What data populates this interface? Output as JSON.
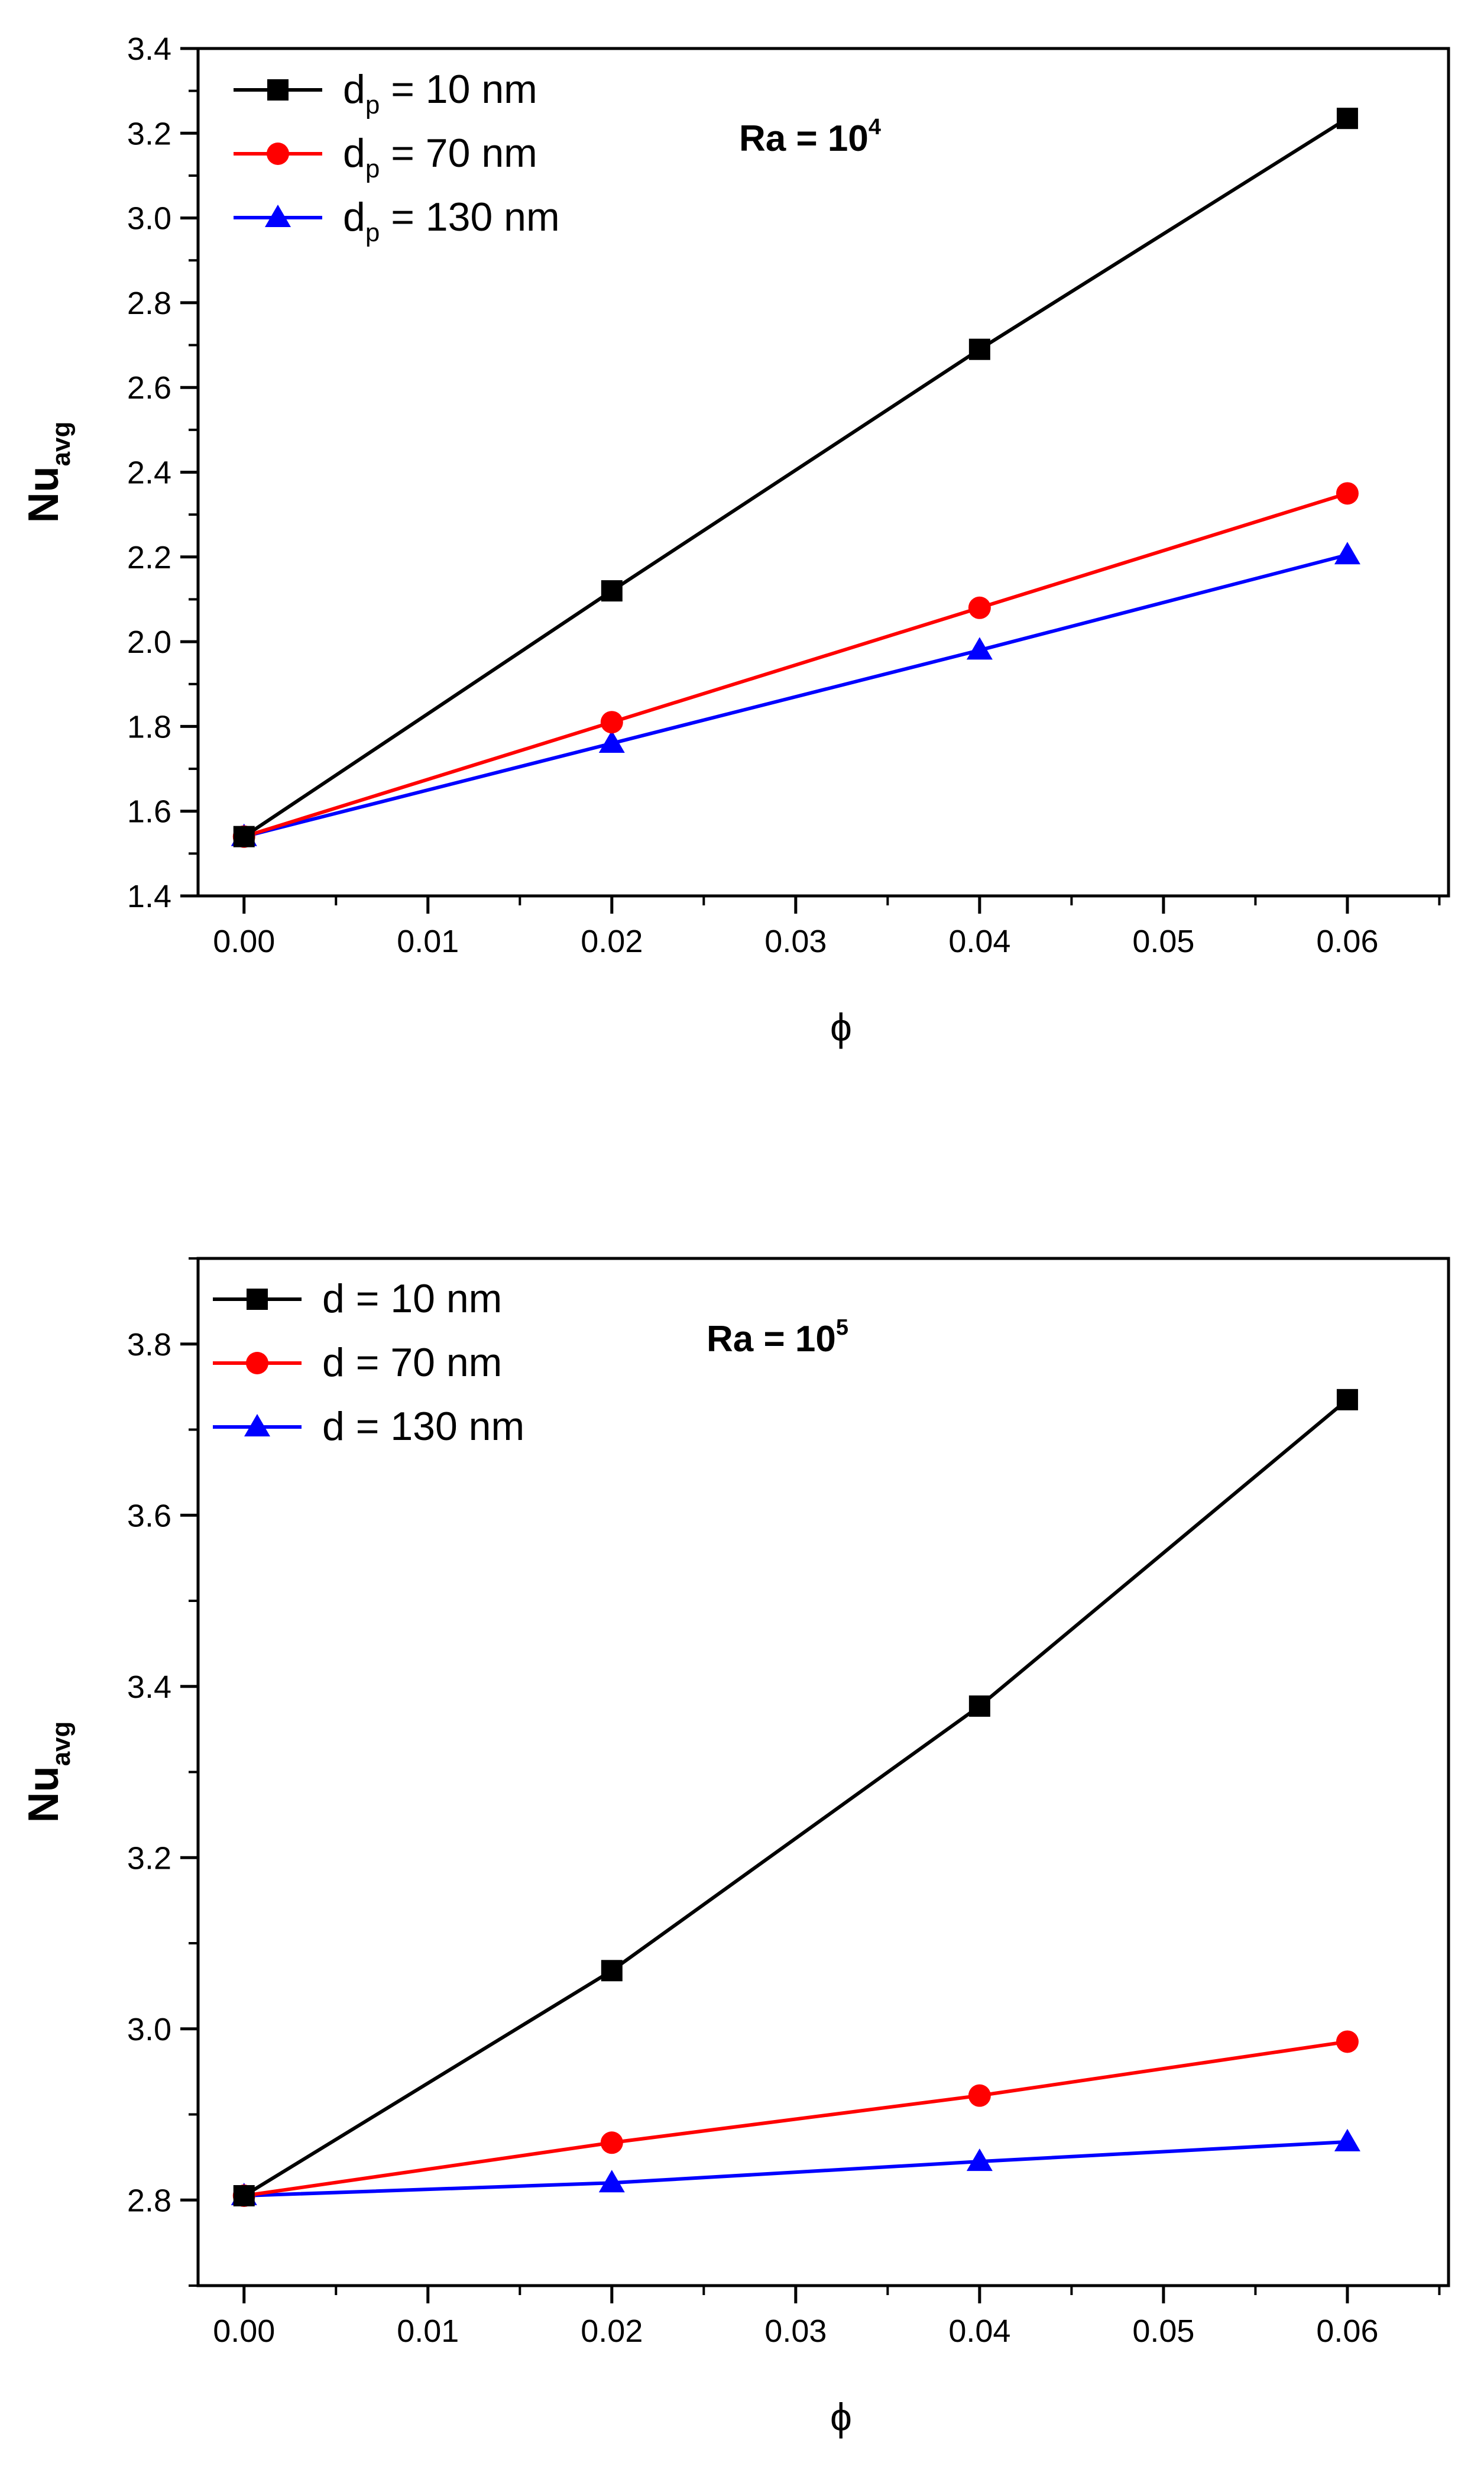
{
  "chart_data": [
    {
      "type": "line",
      "annotation": {
        "text": "Ra = 10",
        "superscript": "4"
      },
      "xlabel": "ϕ",
      "ylabel": {
        "main": "Nu",
        "sub": "avg"
      },
      "xlim": [
        -0.0025,
        0.0655
      ],
      "ylim": [
        1.4,
        3.4
      ],
      "xticks": [
        0.0,
        0.01,
        0.02,
        0.03,
        0.04,
        0.05,
        0.06
      ],
      "xtick_labels": [
        "0.00",
        "0.01",
        "0.02",
        "0.03",
        "0.04",
        "0.05",
        "0.06"
      ],
      "yticks": [
        1.4,
        1.6,
        1.8,
        2.0,
        2.2,
        2.4,
        2.6,
        2.8,
        3.0,
        3.2,
        3.4
      ],
      "ytick_labels": [
        "1.4",
        "1.6",
        "1.8",
        "2.0",
        "2.2",
        "2.4",
        "2.6",
        "2.8",
        "3.0",
        "3.2",
        "3.4"
      ],
      "legend_position": "top-left",
      "x": [
        0.0,
        0.02,
        0.04,
        0.06
      ],
      "series": [
        {
          "legend": {
            "base": "d",
            "sub": "p",
            "rest": " = 10   nm"
          },
          "color": "#000000",
          "marker": "square",
          "values": [
            1.54,
            2.12,
            2.69,
            3.235
          ]
        },
        {
          "legend": {
            "base": "d",
            "sub": "p",
            "rest": " = 70   nm"
          },
          "color": "#ff0000",
          "marker": "circle",
          "values": [
            1.54,
            1.81,
            2.08,
            2.35
          ]
        },
        {
          "legend": {
            "base": "d",
            "sub": "p",
            "rest": " = 130 nm"
          },
          "color": "#0000ff",
          "marker": "triangle",
          "values": [
            1.54,
            1.76,
            1.98,
            2.205
          ]
        }
      ]
    },
    {
      "type": "line",
      "annotation": {
        "text": "Ra = 10",
        "superscript": "5"
      },
      "xlabel": "ϕ",
      "ylabel": {
        "main": "Nu",
        "sub": "avg"
      },
      "xlim": [
        -0.0025,
        0.0655
      ],
      "ylim": [
        2.7,
        3.9
      ],
      "xticks": [
        0.0,
        0.01,
        0.02,
        0.03,
        0.04,
        0.05,
        0.06
      ],
      "xtick_labels": [
        "0.00",
        "0.01",
        "0.02",
        "0.03",
        "0.04",
        "0.05",
        "0.06"
      ],
      "yticks": [
        2.8,
        3.0,
        3.2,
        3.4,
        3.6,
        3.8
      ],
      "ytick_labels": [
        "2.8",
        "3.0",
        "3.2",
        "3.4",
        "3.6",
        "3.8"
      ],
      "legend_position": "top-left",
      "x": [
        0.0,
        0.02,
        0.04,
        0.06
      ],
      "series": [
        {
          "legend": {
            "base": "d",
            "sub": "",
            "rest": " = 10   nm"
          },
          "color": "#000000",
          "marker": "square",
          "values": [
            2.805,
            3.068,
            3.377,
            3.735
          ]
        },
        {
          "legend": {
            "base": "d",
            "sub": "",
            "rest": " = 70   nm"
          },
          "color": "#ff0000",
          "marker": "circle",
          "values": [
            2.805,
            2.867,
            2.922,
            2.985
          ]
        },
        {
          "legend": {
            "base": "d",
            "sub": "",
            "rest": " = 130 nm"
          },
          "color": "#0000ff",
          "marker": "triangle",
          "values": [
            2.805,
            2.82,
            2.845,
            2.868
          ]
        }
      ]
    }
  ]
}
